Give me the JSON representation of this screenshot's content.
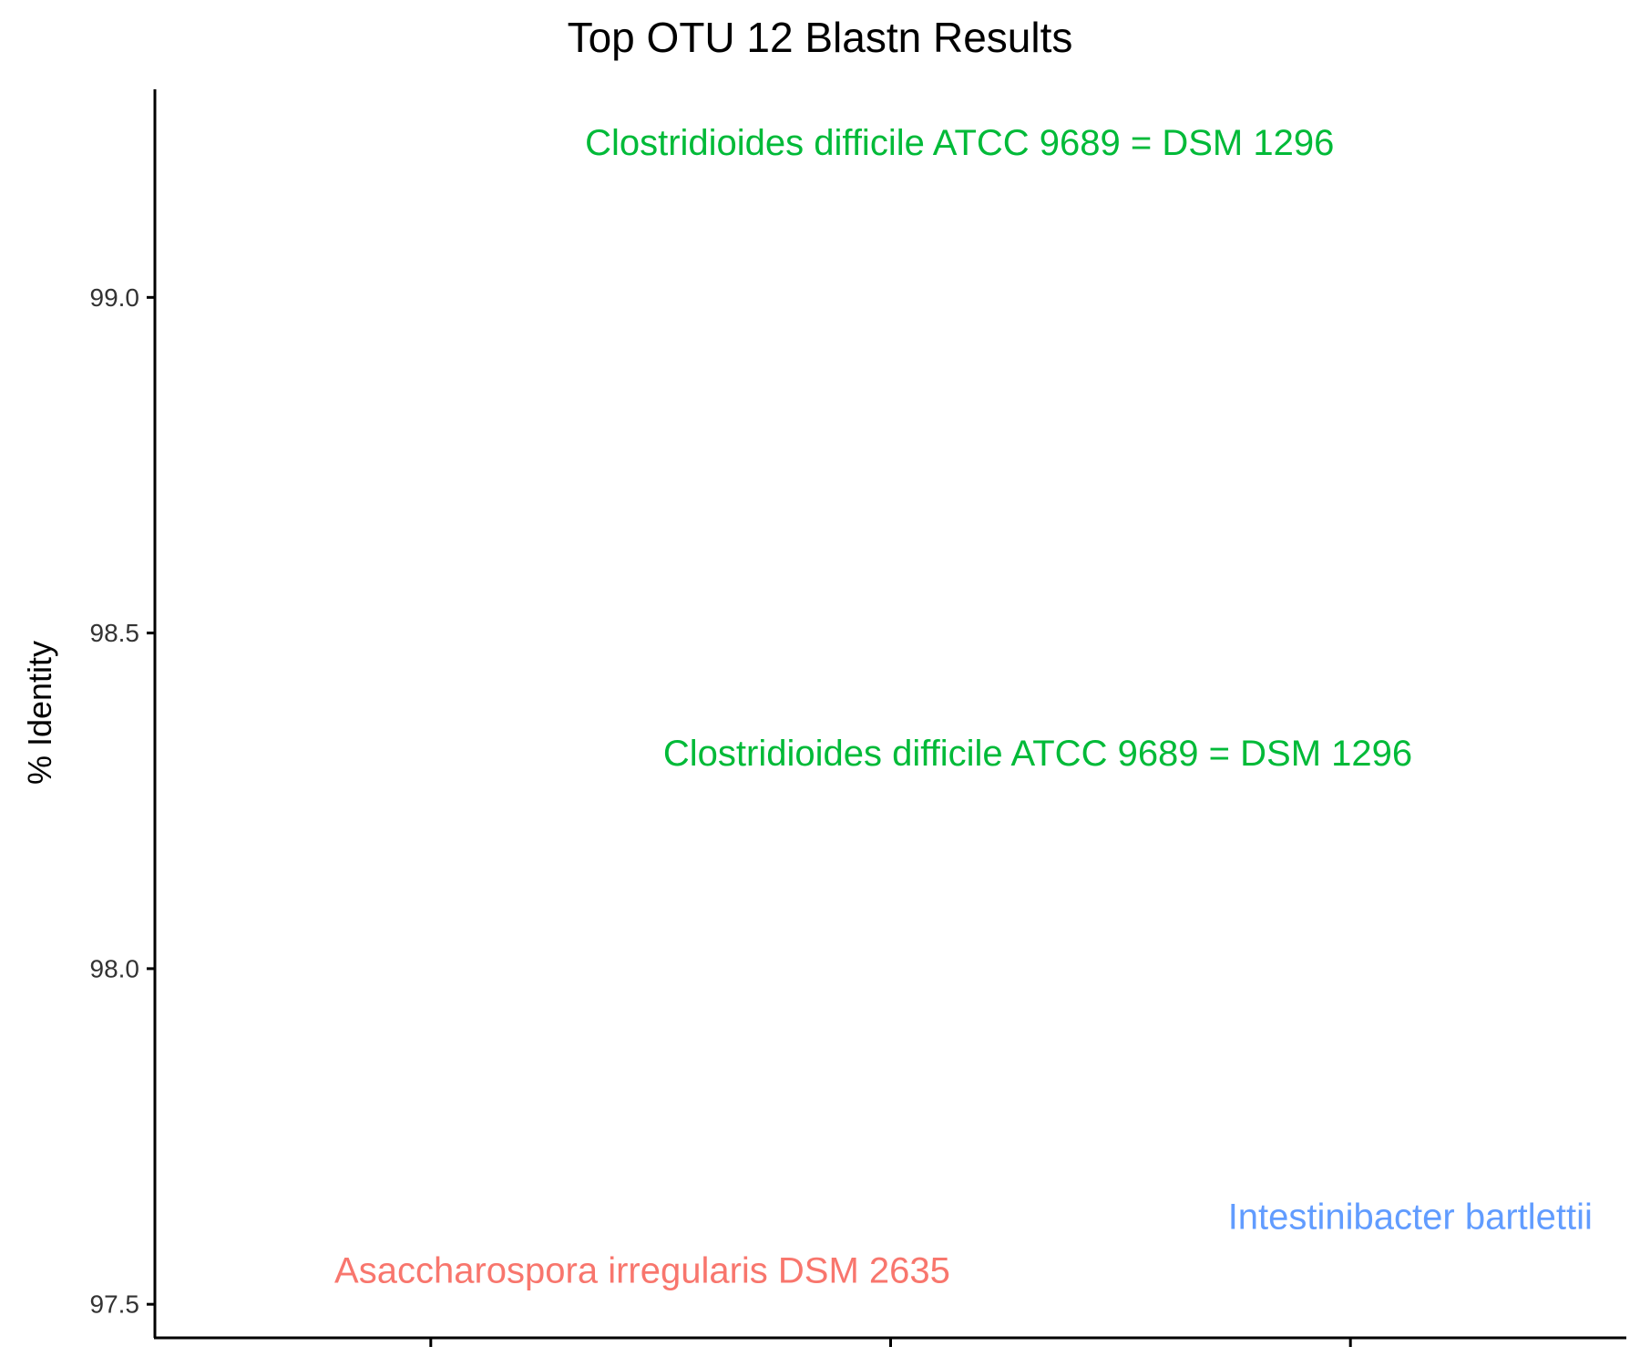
{
  "chart_data": {
    "type": "scatter",
    "title": "Top OTU 12 Blastn Results",
    "xlabel": "",
    "ylabel": "% Identity",
    "ylim": [
      97.45,
      99.31
    ],
    "x_positions": [
      1,
      2,
      3
    ],
    "xlim": [
      0.4,
      3.6
    ],
    "yticks": [
      "97.5",
      "98.0",
      "98.5",
      "99.0"
    ],
    "grid": false,
    "points": [
      {
        "x": 2.15,
        "y": 99.23,
        "label": "Clostridioides difficile ATCC 9689 = DSM 1296",
        "color": "#00BA38"
      },
      {
        "x": 2.32,
        "y": 98.32,
        "label": "Clostridioides difficile ATCC 9689 = DSM 1296",
        "color": "#00BA38"
      },
      {
        "x": 3.13,
        "y": 97.63,
        "label": "Intestinibacter bartlettii",
        "color": "#619CFF"
      },
      {
        "x": 1.46,
        "y": 97.55,
        "label": "Asaccharospora irregularis DSM 2635",
        "color": "#F8766D"
      }
    ]
  }
}
